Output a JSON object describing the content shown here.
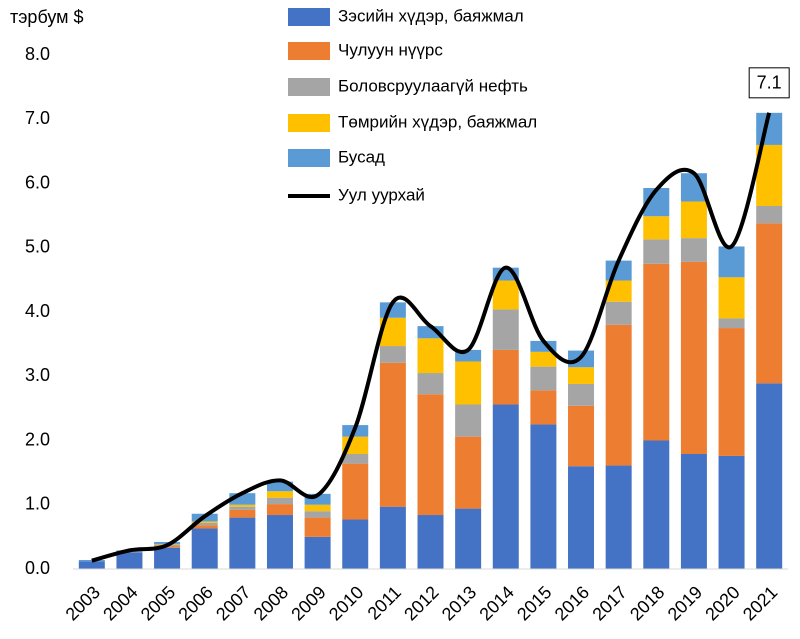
{
  "chart_data": {
    "type": "bar",
    "stacked": true,
    "y_label": "тэрбум $",
    "categories": [
      "2003",
      "2004",
      "2005",
      "2006",
      "2007",
      "2008",
      "2009",
      "2010",
      "2011",
      "2012",
      "2013",
      "2014",
      "2015",
      "2016",
      "2017",
      "2018",
      "2019",
      "2020",
      "2021"
    ],
    "series": [
      {
        "name": "Зэсийн хүдэр, баяжмал",
        "color": "#4472c4",
        "values": [
          0.12,
          0.26,
          0.33,
          0.63,
          0.8,
          0.84,
          0.5,
          0.77,
          0.97,
          0.84,
          0.94,
          2.56,
          2.25,
          1.6,
          1.61,
          2.0,
          1.79,
          1.76,
          2.89
        ]
      },
      {
        "name": "Чулуун нүүрс",
        "color": "#ed7d31",
        "values": [
          0,
          0,
          0.02,
          0.05,
          0.12,
          0.17,
          0.3,
          0.87,
          2.24,
          1.88,
          1.12,
          0.85,
          0.53,
          0.94,
          2.19,
          2.75,
          2.99,
          1.99,
          2.49
        ]
      },
      {
        "name": "Боловсруулаагүй нефть",
        "color": "#a5a5a5",
        "values": [
          0,
          0.01,
          0.03,
          0.04,
          0.05,
          0.1,
          0.1,
          0.15,
          0.26,
          0.33,
          0.5,
          0.63,
          0.37,
          0.34,
          0.36,
          0.38,
          0.37,
          0.15,
          0.27
        ]
      },
      {
        "name": "Төмрийн хүдэр, баяжмал",
        "color": "#ffc000",
        "values": [
          0,
          0,
          0.01,
          0.02,
          0.03,
          0.1,
          0.1,
          0.27,
          0.44,
          0.54,
          0.67,
          0.45,
          0.23,
          0.26,
          0.33,
          0.36,
          0.57,
          0.64,
          0.95
        ]
      },
      {
        "name": "Бусад",
        "color": "#5b9bd5",
        "values": [
          0.02,
          0.02,
          0.03,
          0.12,
          0.18,
          0.15,
          0.17,
          0.18,
          0.24,
          0.19,
          0.18,
          0.2,
          0.17,
          0.26,
          0.31,
          0.44,
          0.44,
          0.48,
          0.5
        ]
      },
      {
        "name": "Уул уурхай",
        "type": "line",
        "color": "#000000",
        "values": [
          0.13,
          0.29,
          0.37,
          0.82,
          1.18,
          1.38,
          1.15,
          2.2,
          4.15,
          3.78,
          3.41,
          4.69,
          3.55,
          3.3,
          4.8,
          5.9,
          6.16,
          5.02,
          7.1
        ],
        "value_labels": [
          null,
          null,
          null,
          null,
          null,
          null,
          null,
          null,
          null,
          null,
          null,
          null,
          null,
          null,
          null,
          null,
          null,
          null,
          "7.1"
        ]
      }
    ],
    "ylim": [
      0,
      8
    ],
    "yticks": [
      {
        "value": 0,
        "label": "0.0"
      },
      {
        "value": 1,
        "label": "1.0"
      },
      {
        "value": 2,
        "label": "2.0"
      },
      {
        "value": 3,
        "label": "3.0"
      },
      {
        "value": 4,
        "label": "4.0"
      },
      {
        "value": 5,
        "label": "5.0"
      },
      {
        "value": 6,
        "label": "6.0"
      },
      {
        "value": 7,
        "label": "7.0"
      },
      {
        "value": 8,
        "label": "8.0"
      }
    ],
    "grid": false,
    "legend": "top"
  }
}
